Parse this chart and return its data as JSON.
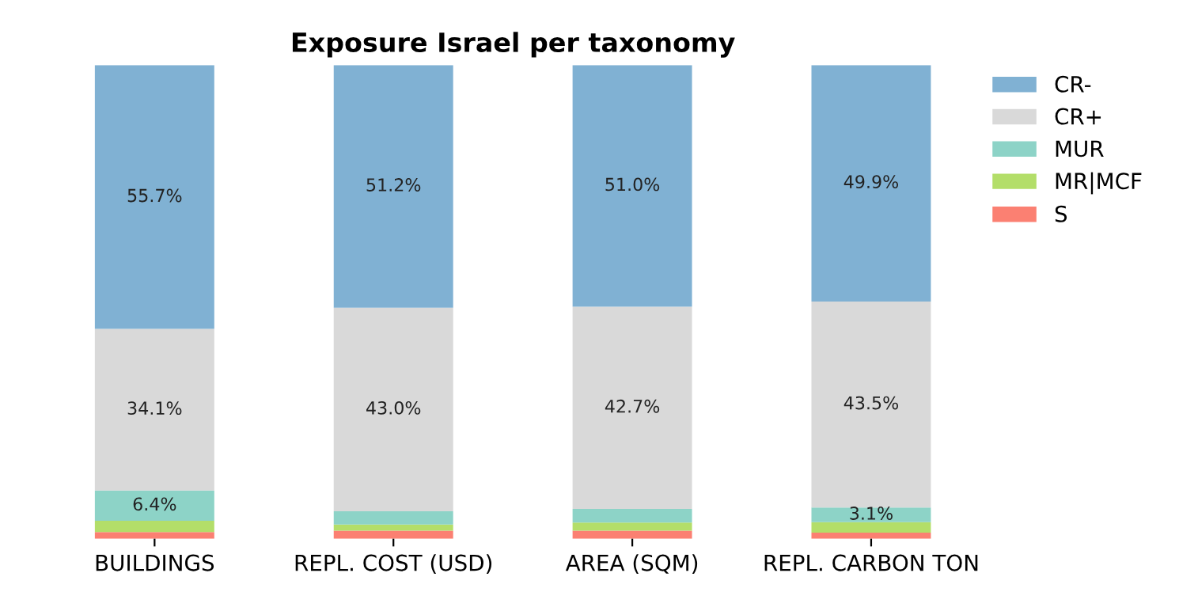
{
  "chart_data": {
    "type": "bar",
    "title": "Exposure Israel per taxonomy",
    "stacked": true,
    "legend": "top right",
    "grid": false,
    "tick_labels": "x",
    "categories": [
      "BUILDINGS",
      "REPL. COST (USD)",
      "AREA (SQM)",
      "REPL. CARBON TON"
    ],
    "series": [
      {
        "name": "S",
        "color": "#fb8072",
        "values": [
          1.4,
          1.7,
          1.7,
          1.3
        ],
        "value_labels": [
          null,
          null,
          null,
          null
        ]
      },
      {
        "name": "MR|MCF",
        "color": "#b3de69",
        "values": [
          2.4,
          1.3,
          1.7,
          2.2
        ],
        "value_labels": [
          null,
          null,
          null,
          null
        ]
      },
      {
        "name": "MUR",
        "color": "#8dd3c7",
        "values": [
          6.4,
          2.8,
          2.9,
          3.1
        ],
        "value_labels": [
          "6.4%",
          null,
          null,
          "3.1%"
        ]
      },
      {
        "name": "CR+",
        "color": "#d9d9d9",
        "values": [
          34.1,
          43.0,
          42.7,
          43.5
        ],
        "value_labels": [
          "34.1%",
          "43.0%",
          "42.7%",
          "43.5%"
        ]
      },
      {
        "name": "CR-",
        "color": "#80b1d3",
        "values": [
          55.7,
          51.2,
          51.0,
          49.9
        ],
        "value_labels": [
          "55.7%",
          "51.2%",
          "51.0%",
          "49.9%"
        ]
      }
    ]
  }
}
